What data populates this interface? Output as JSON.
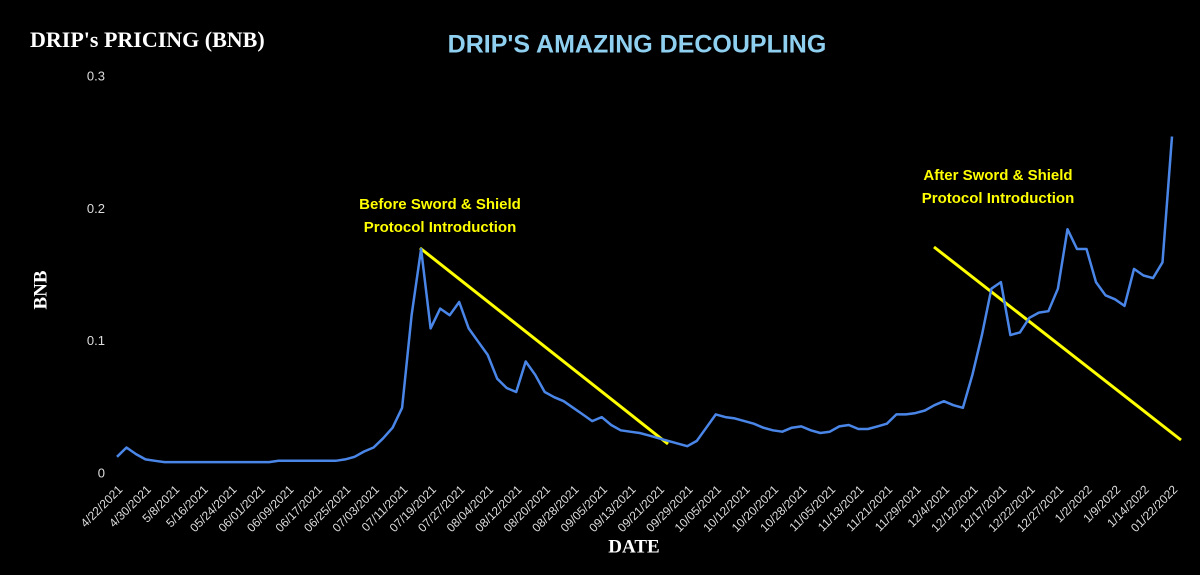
{
  "chart_data": {
    "type": "line",
    "title": "DRIP'S AMAZING DECOUPLING",
    "subtitle": "DRIP's PRICING (BNB)",
    "x_label": "DATE",
    "y_label": "BNB",
    "categories": [
      "4/22/2021",
      null,
      null,
      "4/30/2021",
      null,
      null,
      "5/8/2021",
      null,
      null,
      "5/16/2021",
      null,
      null,
      "05/24/2021",
      null,
      null,
      "06/01/2021",
      null,
      null,
      "06/09/2021",
      null,
      null,
      "06/17/2021",
      null,
      null,
      "06/25/2021",
      null,
      null,
      "07/03/2021",
      null,
      null,
      "07/11/2021",
      null,
      null,
      "07/19/2021",
      null,
      null,
      "07/27/2021",
      null,
      null,
      "08/04/2021",
      null,
      null,
      "08/12/2021",
      null,
      null,
      "08/20/2021",
      null,
      null,
      "08/28/2021",
      null,
      null,
      "09/05/2021",
      null,
      null,
      "09/13/2021",
      null,
      null,
      "09/21/2021",
      null,
      null,
      "09/29/2021",
      null,
      null,
      "10/05/2021",
      null,
      null,
      "10/12/2021",
      null,
      null,
      "10/20/2021",
      null,
      null,
      "10/28/2021",
      null,
      null,
      "11/05/2021",
      null,
      null,
      "11/13/2021",
      null,
      null,
      "11/21/2021",
      null,
      null,
      "11/29/2021",
      null,
      null,
      "12/4/2021",
      null,
      null,
      "12/12/2021",
      null,
      null,
      "12/17/2021",
      null,
      null,
      "12/22/2021",
      null,
      null,
      "12/27/2021",
      null,
      null,
      "1/2/2022",
      null,
      null,
      "1/9/2022",
      null,
      null,
      "1/14/2022",
      null,
      null,
      "01/22/2022"
    ],
    "values": [
      0.013,
      0.02,
      0.015,
      0.011,
      0.01,
      0.009,
      0.009,
      0.009,
      0.009,
      0.009,
      0.009,
      0.009,
      0.009,
      0.009,
      0.009,
      0.009,
      0.009,
      0.01,
      0.01,
      0.01,
      0.01,
      0.01,
      0.01,
      0.01,
      0.011,
      0.013,
      0.017,
      0.02,
      0.027,
      0.035,
      0.05,
      0.12,
      0.17,
      0.11,
      0.125,
      0.12,
      0.13,
      0.11,
      0.1,
      0.09,
      0.072,
      0.065,
      0.062,
      0.085,
      0.075,
      0.062,
      0.058,
      0.055,
      0.05,
      0.045,
      0.04,
      0.043,
      0.037,
      0.033,
      0.032,
      0.031,
      0.029,
      0.027,
      0.025,
      0.023,
      0.021,
      0.025,
      0.035,
      0.045,
      0.043,
      0.042,
      0.04,
      0.038,
      0.035,
      0.033,
      0.032,
      0.035,
      0.036,
      0.033,
      0.031,
      0.032,
      0.036,
      0.037,
      0.034,
      0.034,
      0.036,
      0.038,
      0.045,
      0.045,
      0.046,
      0.048,
      0.052,
      0.055,
      0.052,
      0.05,
      0.075,
      0.105,
      0.14,
      0.145,
      0.105,
      0.107,
      0.118,
      0.122,
      0.123,
      0.14,
      0.185,
      0.17,
      0.17,
      0.145,
      0.135,
      0.132,
      0.127,
      0.155,
      0.15,
      0.148,
      0.16,
      0.255
    ],
    "color": "#4a86e8",
    "ylim": [
      0,
      0.3
    ],
    "yticks": [
      0,
      0.1,
      0.2,
      0.3
    ],
    "grid": false,
    "annotations": [
      {
        "lines": [
          "Before Sword & Shield",
          "Protocol Introduction"
        ],
        "color": "#ffff00"
      },
      {
        "lines": [
          "After Sword & Shield",
          "Protocol Introduction"
        ],
        "color": "#ffff00"
      }
    ]
  }
}
